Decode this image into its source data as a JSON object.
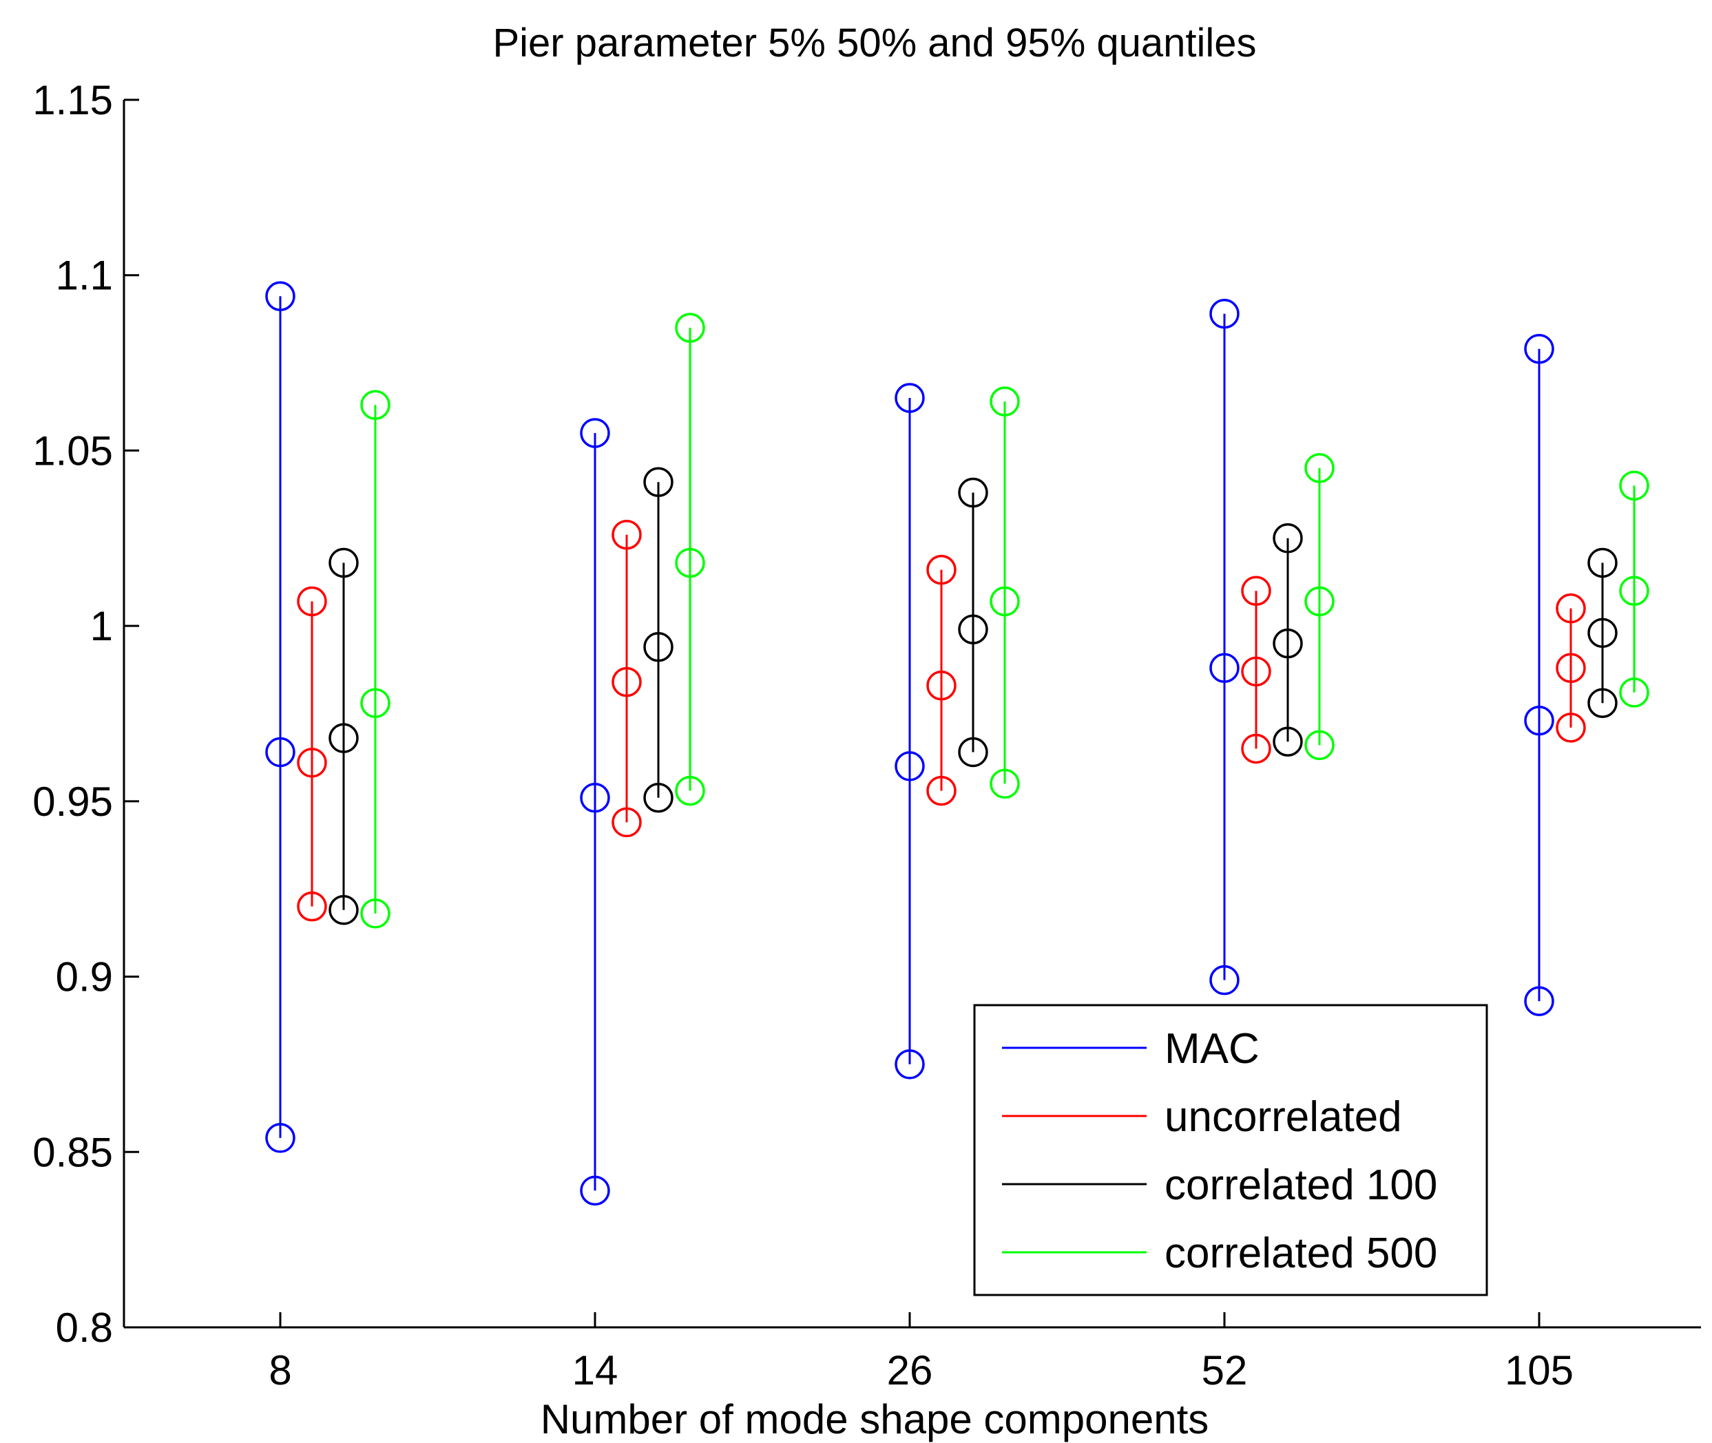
{
  "chart_data": {
    "type": "scatter",
    "title": "Pier parameter 5% 50% and 95% quantiles",
    "xlabel": "Number of mode shape components",
    "ylabel": "",
    "categories": [
      "8",
      "14",
      "26",
      "52",
      "105"
    ],
    "ylim": [
      0.8,
      1.15
    ],
    "yticks": [
      "0.8",
      "0.85",
      "0.9",
      "0.95",
      "1",
      "1.05",
      "1.1",
      "1.15"
    ],
    "quantile_labels": [
      "5%",
      "50%",
      "95%"
    ],
    "legend_position": "bottom-right",
    "series": [
      {
        "name": "MAC",
        "color": "#0000ff",
        "values": [
          [
            0.854,
            0.964,
            1.094
          ],
          [
            0.839,
            0.951,
            1.055
          ],
          [
            0.875,
            0.96,
            1.065
          ],
          [
            0.899,
            0.988,
            1.089
          ],
          [
            0.893,
            0.973,
            1.079
          ]
        ]
      },
      {
        "name": "uncorrelated",
        "color": "#ff0000",
        "values": [
          [
            0.92,
            0.961,
            1.007
          ],
          [
            0.944,
            0.984,
            1.026
          ],
          [
            0.953,
            0.983,
            1.016
          ],
          [
            0.965,
            0.987,
            1.01
          ],
          [
            0.971,
            0.988,
            1.005
          ]
        ]
      },
      {
        "name": "correlated 100",
        "color": "#000000",
        "values": [
          [
            0.919,
            0.968,
            1.018
          ],
          [
            0.951,
            0.994,
            1.041
          ],
          [
            0.964,
            0.999,
            1.038
          ],
          [
            0.967,
            0.995,
            1.025
          ],
          [
            0.978,
            0.998,
            1.018
          ]
        ]
      },
      {
        "name": "correlated 500",
        "color": "#00ff00",
        "values": [
          [
            0.918,
            0.978,
            1.063
          ],
          [
            0.953,
            1.018,
            1.085
          ],
          [
            0.955,
            1.007,
            1.064
          ],
          [
            0.966,
            1.007,
            1.045
          ],
          [
            0.981,
            1.01,
            1.04
          ]
        ]
      }
    ]
  }
}
